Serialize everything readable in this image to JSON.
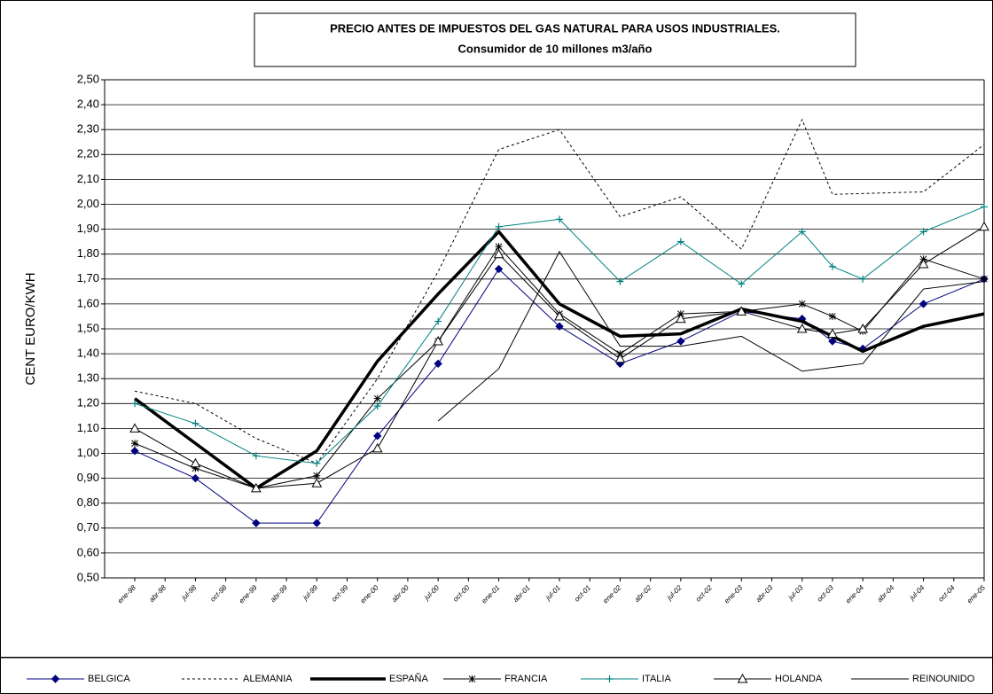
{
  "chart_data": {
    "type": "line",
    "title": "PRECIO ANTES DE IMPUESTOS DEL GAS NATURAL PARA USOS INDUSTRIALES.",
    "subtitle": "Consumidor de 10 millones m3/año",
    "y_label": "CENT EURO/KWH",
    "connect_gaps": true,
    "categories": [
      "ene-98",
      "abr-98",
      "jul-98",
      "oct-98",
      "ene-99",
      "abr-99",
      "jul-99",
      "oct-99",
      "ene-00",
      "abr-00",
      "jul-00",
      "oct-00",
      "ene-01",
      "abr-01",
      "jul-01",
      "oct-01",
      "ene-02",
      "abr-02",
      "jul-02",
      "oct-02",
      "ene-03",
      "abr-03",
      "jul-03",
      "oct-03",
      "ene-04",
      "abr-04",
      "jul-04",
      "oct-04",
      "ene-05"
    ],
    "ylim": [
      0.5,
      2.5
    ],
    "yticks": [
      {
        "value": 0.5,
        "label": "0,50"
      },
      {
        "value": 0.6,
        "label": "0,60"
      },
      {
        "value": 0.7,
        "label": "0,70"
      },
      {
        "value": 0.8,
        "label": "0,80"
      },
      {
        "value": 0.9,
        "label": "0,90"
      },
      {
        "value": 1.0,
        "label": "1,00"
      },
      {
        "value": 1.1,
        "label": "1,10"
      },
      {
        "value": 1.2,
        "label": "1,20"
      },
      {
        "value": 1.3,
        "label": "1,30"
      },
      {
        "value": 1.4,
        "label": "1,40"
      },
      {
        "value": 1.5,
        "label": "1,50"
      },
      {
        "value": 1.6,
        "label": "1,60"
      },
      {
        "value": 1.7,
        "label": "1,70"
      },
      {
        "value": 1.8,
        "label": "1,80"
      },
      {
        "value": 1.9,
        "label": "1,90"
      },
      {
        "value": 2.0,
        "label": "2,00"
      },
      {
        "value": 2.1,
        "label": "2,10"
      },
      {
        "value": 2.2,
        "label": "2,20"
      },
      {
        "value": 2.3,
        "label": "2,30"
      },
      {
        "value": 2.4,
        "label": "2,40"
      },
      {
        "value": 2.5,
        "label": "2,50"
      }
    ],
    "grid": true,
    "series": [
      {
        "name": "BELGICA",
        "color": "#000080",
        "marker": "diamond",
        "style": "solid",
        "width": 1,
        "values": [
          1.01,
          null,
          0.9,
          null,
          0.72,
          null,
          0.72,
          null,
          1.07,
          null,
          1.36,
          null,
          1.74,
          null,
          1.51,
          null,
          1.36,
          null,
          1.45,
          null,
          1.57,
          null,
          1.54,
          1.45,
          1.42,
          null,
          1.6,
          null,
          1.7
        ]
      },
      {
        "name": "ALEMANIA",
        "color": "#000000",
        "marker": "none",
        "style": "dashed",
        "width": 1,
        "values": [
          1.25,
          null,
          1.2,
          null,
          1.06,
          null,
          0.96,
          null,
          1.3,
          null,
          1.73,
          null,
          2.22,
          null,
          2.3,
          null,
          1.95,
          null,
          2.03,
          null,
          1.82,
          null,
          2.34,
          2.04,
          null,
          null,
          2.05,
          null,
          2.24
        ]
      },
      {
        "name": "ESPAÑA",
        "color": "#000000",
        "marker": "none",
        "style": "solid",
        "width": 3.5,
        "values": [
          1.22,
          null,
          1.04,
          null,
          0.86,
          null,
          1.01,
          null,
          1.37,
          null,
          1.64,
          null,
          1.89,
          null,
          1.6,
          null,
          1.47,
          null,
          1.48,
          null,
          1.58,
          null,
          1.53,
          null,
          1.41,
          null,
          1.51,
          null,
          1.56
        ]
      },
      {
        "name": "FRANCIA",
        "color": "#000000",
        "marker": "star",
        "style": "solid",
        "width": 1,
        "values": [
          1.04,
          null,
          0.94,
          null,
          0.86,
          null,
          0.91,
          null,
          1.22,
          null,
          1.45,
          null,
          1.83,
          null,
          1.56,
          null,
          1.4,
          null,
          1.56,
          null,
          1.57,
          null,
          1.6,
          1.55,
          1.49,
          null,
          1.78,
          null,
          1.7
        ]
      },
      {
        "name": "ITALIA",
        "color": "#008080",
        "marker": "plus",
        "style": "solid",
        "width": 1,
        "values": [
          1.2,
          null,
          1.12,
          null,
          0.99,
          null,
          0.96,
          null,
          1.19,
          null,
          1.53,
          null,
          1.91,
          null,
          1.94,
          null,
          1.69,
          null,
          1.85,
          null,
          1.68,
          null,
          1.89,
          1.75,
          1.7,
          null,
          1.89,
          null,
          1.99
        ]
      },
      {
        "name": "HOLANDA",
        "color": "#000000",
        "marker": "triangle",
        "style": "solid",
        "width": 1,
        "values": [
          1.1,
          null,
          0.96,
          null,
          0.86,
          null,
          0.88,
          null,
          1.02,
          null,
          1.45,
          null,
          1.8,
          null,
          1.55,
          null,
          1.38,
          null,
          1.54,
          null,
          1.57,
          null,
          1.5,
          1.48,
          1.5,
          null,
          1.76,
          null,
          1.91
        ]
      },
      {
        "name": "REINOUNIDO",
        "color": "#000000",
        "marker": "none",
        "style": "solid",
        "width": 1,
        "values": [
          null,
          null,
          null,
          null,
          null,
          null,
          null,
          null,
          null,
          null,
          1.13,
          null,
          1.34,
          null,
          1.81,
          null,
          1.43,
          null,
          1.43,
          null,
          1.47,
          null,
          1.33,
          null,
          1.36,
          null,
          1.66,
          null,
          1.69
        ]
      }
    ]
  }
}
